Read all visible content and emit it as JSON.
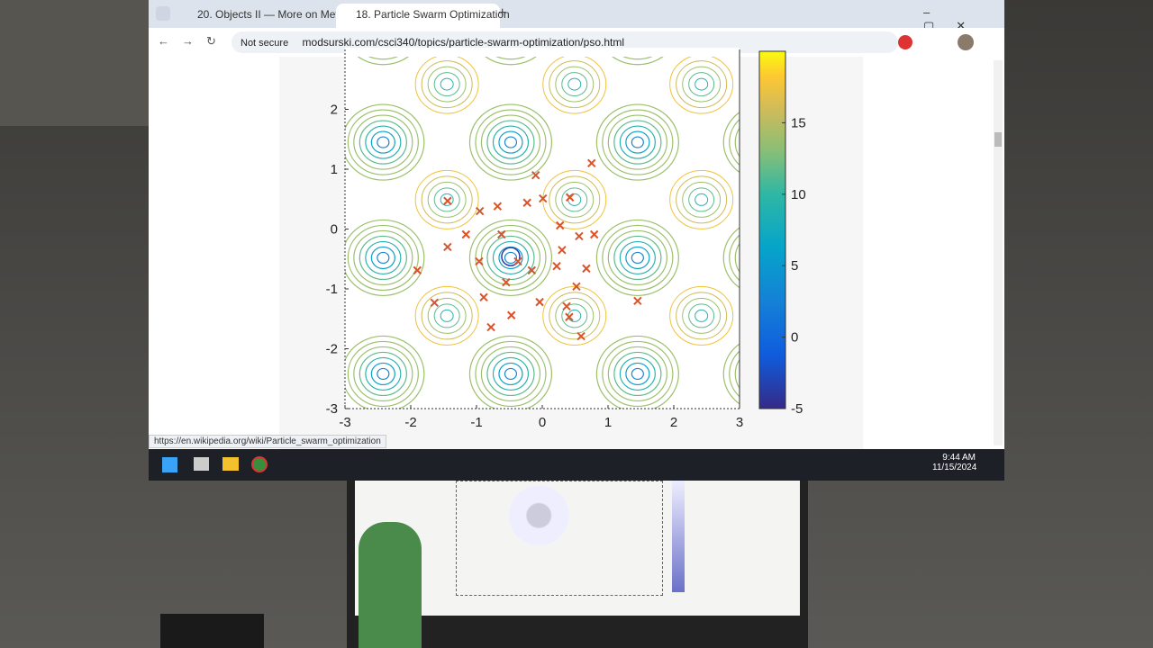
{
  "browser": {
    "tabs": [
      {
        "title": "20. Objects II — More on Meth"
      },
      {
        "title": "18. Particle Swarm Optimization"
      }
    ],
    "address": {
      "security": "Not secure",
      "url": "modsurski.com/csci340/topics/particle-swarm-optimization/pso.html"
    },
    "status_link": "https://en.wikipedia.org/wiki/Particle_swarm_optimization"
  },
  "plot": {
    "xlim": [
      -3,
      3
    ],
    "ylim": [
      -3,
      3
    ],
    "xticks": [
      -3,
      -2,
      -1,
      0,
      1,
      2,
      3
    ],
    "yticks": [
      -3,
      -2,
      -1,
      0,
      1,
      2
    ],
    "colorbar": {
      "lim": [
        -5,
        20
      ],
      "ticks": [
        -5,
        0,
        5,
        10,
        15
      ]
    },
    "particles": {
      "x": [
        -1.44,
        -0.1,
        0.75,
        -0.68,
        -0.95,
        -0.23,
        0.01,
        0.42,
        0.27,
        0.79,
        0.56,
        -1.16,
        -1.44,
        -0.62,
        0.3,
        -0.96,
        -0.37,
        0.22,
        0.67,
        -1.9,
        -0.55,
        -0.16,
        0.52,
        -0.04,
        -0.89,
        -1.64,
        1.45,
        0.37,
        0.41,
        -0.47,
        -0.78,
        0.59
      ],
      "y": [
        0.47,
        0.9,
        1.1,
        0.38,
        0.3,
        0.44,
        0.51,
        0.53,
        0.06,
        -0.09,
        -0.12,
        -0.09,
        -0.3,
        -0.09,
        -0.35,
        -0.54,
        -0.54,
        -0.62,
        -0.66,
        -0.69,
        -0.89,
        -0.69,
        -0.96,
        -1.22,
        -1.14,
        -1.23,
        -1.2,
        -1.29,
        -1.47,
        -1.44,
        -1.64,
        -1.79
      ]
    }
  },
  "taskbar": {
    "time": "9:44 AM",
    "date": "11/15/2024"
  }
}
